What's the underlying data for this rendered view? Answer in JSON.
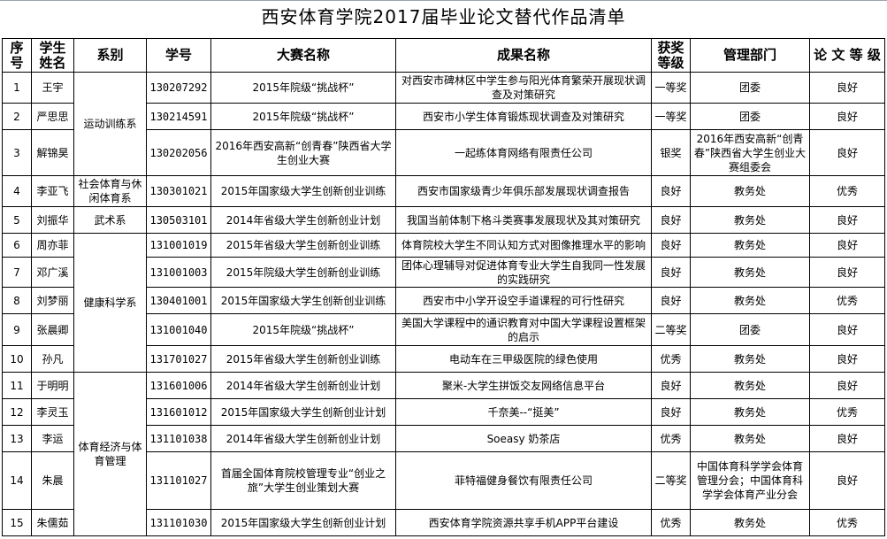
{
  "title": "西安体育学院2017届毕业论文替代作品清单",
  "headers": [
    "序号",
    "学生姓名",
    "系别",
    "学号",
    "大赛名称",
    "成果名称",
    "获奖等级",
    "管理部门",
    "论 文 等 级"
  ],
  "departments": [
    {
      "name": "运动训练系",
      "rows": 3
    },
    {
      "name": "社会体育与休闲体育系",
      "rows": 1
    },
    {
      "name": "武术系",
      "rows": 1
    },
    {
      "name": "健康科学系",
      "rows": 5
    },
    {
      "name": "体育经济与体育管理",
      "rows": 5
    }
  ],
  "rows": [
    {
      "no": "1",
      "name": "王宇",
      "id": "130207292",
      "contest": "2015年院级“挑战杯”",
      "result": "对西安市碑林区中学生参与阳光体育繁荣开展现状调查及对策研究",
      "award": "一等奖",
      "dept": "团委",
      "grade": "良好"
    },
    {
      "no": "2",
      "name": "严思思",
      "id": "130214591",
      "contest": "2015年院级“挑战杯”",
      "result": "西安市小学生体育锻炼现状调查及对策研究",
      "award": "一等奖",
      "dept": "团委",
      "grade": "良好"
    },
    {
      "no": "3",
      "name": "解锦昊",
      "id": "130202056",
      "contest": "2016年西安高新“创青春”陕西省大学生创业大赛",
      "result": "一起练体育网络有限责任公司",
      "award": "银奖",
      "dept": "2016年西安高新“创青春”陕西省大学生创业大赛组委会",
      "grade": "良好"
    },
    {
      "no": "4",
      "name": "李亚飞",
      "id": "130301021",
      "contest": "2015年国家级大学生创新创业训练",
      "result": "西安市国家级青少年俱乐部发展现状调查报告",
      "award": "良好",
      "dept": "教务处",
      "grade": "优秀"
    },
    {
      "no": "5",
      "name": "刘振华",
      "id": "130503101",
      "contest": "2014年省级大学生创新创业计划",
      "result": "我国当前体制下格斗类赛事发展现状及其对策研究",
      "award": "良好",
      "dept": "教务处",
      "grade": "良好"
    },
    {
      "no": "6",
      "name": "周亦菲",
      "id": "131001019",
      "contest": "2015年省级大学生创新创业训练",
      "result": "体育院校大学生不同认知方式对图像推理水平的影响",
      "award": "良好",
      "dept": "教务处",
      "grade": "良好"
    },
    {
      "no": "7",
      "name": "邓广溪",
      "id": "131001003",
      "contest": "2015年院级大学生创新创业训练",
      "result": "团体心理辅导对促进体育专业大学生自我同一性发展的实践研究",
      "award": "良好",
      "dept": "教务处",
      "grade": "良好"
    },
    {
      "no": "8",
      "name": "刘梦丽",
      "id": "130401001",
      "contest": "2015年国家级大学生创新创业训练",
      "result": "西安市中小学开设空手道课程的可行性研究",
      "award": "良好",
      "dept": "教务处",
      "grade": "优秀"
    },
    {
      "no": "9",
      "name": "张晨卿",
      "id": "131001040",
      "contest": "2015年院级“挑战杯”",
      "result": "美国大学课程中的通识教育对中国大学课程设置框架的启示",
      "award": "二等奖",
      "dept": "团委",
      "grade": "良好"
    },
    {
      "no": "10",
      "name": "孙凡",
      "id": "131701027",
      "contest": "2015年省级大学生创新创业训练",
      "result": "电动车在三甲级医院的绿色使用",
      "award": "优秀",
      "dept": "教务处",
      "grade": "良好"
    },
    {
      "no": "11",
      "name": "于明明",
      "id": "131601006",
      "contest": "2014年省级大学生创新创业计划",
      "result": "聚米-大学生拼饭交友网络信息平台",
      "award": "良好",
      "dept": "教务处",
      "grade": "良好"
    },
    {
      "no": "12",
      "name": "李灵玉",
      "id": "131601012",
      "contest": "2015年国家级大学生创新创业计划",
      "result": "千奈美--“挺美”",
      "award": "良好",
      "dept": "教务处",
      "grade": "优秀"
    },
    {
      "no": "13",
      "name": "李运",
      "id": "131101038",
      "contest": "2014年省级大学生创新创业计划",
      "result": "Soeasy 奶茶店",
      "award": "优秀",
      "dept": "教务处",
      "grade": "良好"
    },
    {
      "no": "14",
      "name": "朱晨",
      "id": "131101027",
      "contest": "首届全国体育院校管理专业“创业之旅”大学生创业策划大赛",
      "result": "菲特福健身餐饮有限责任公司",
      "award": "二等奖",
      "dept": "中国体育科学学会体育管理分会；中国体育科学学会体育产业分会",
      "grade": "良好"
    },
    {
      "no": "15",
      "name": "朱儒茹",
      "id": "131101030",
      "contest": "2015年国家级大学生创新创业计划",
      "result": "西安体育学院资源共享手机APP平台建设",
      "award": "优秀",
      "dept": "教务处",
      "grade": "优秀"
    }
  ]
}
